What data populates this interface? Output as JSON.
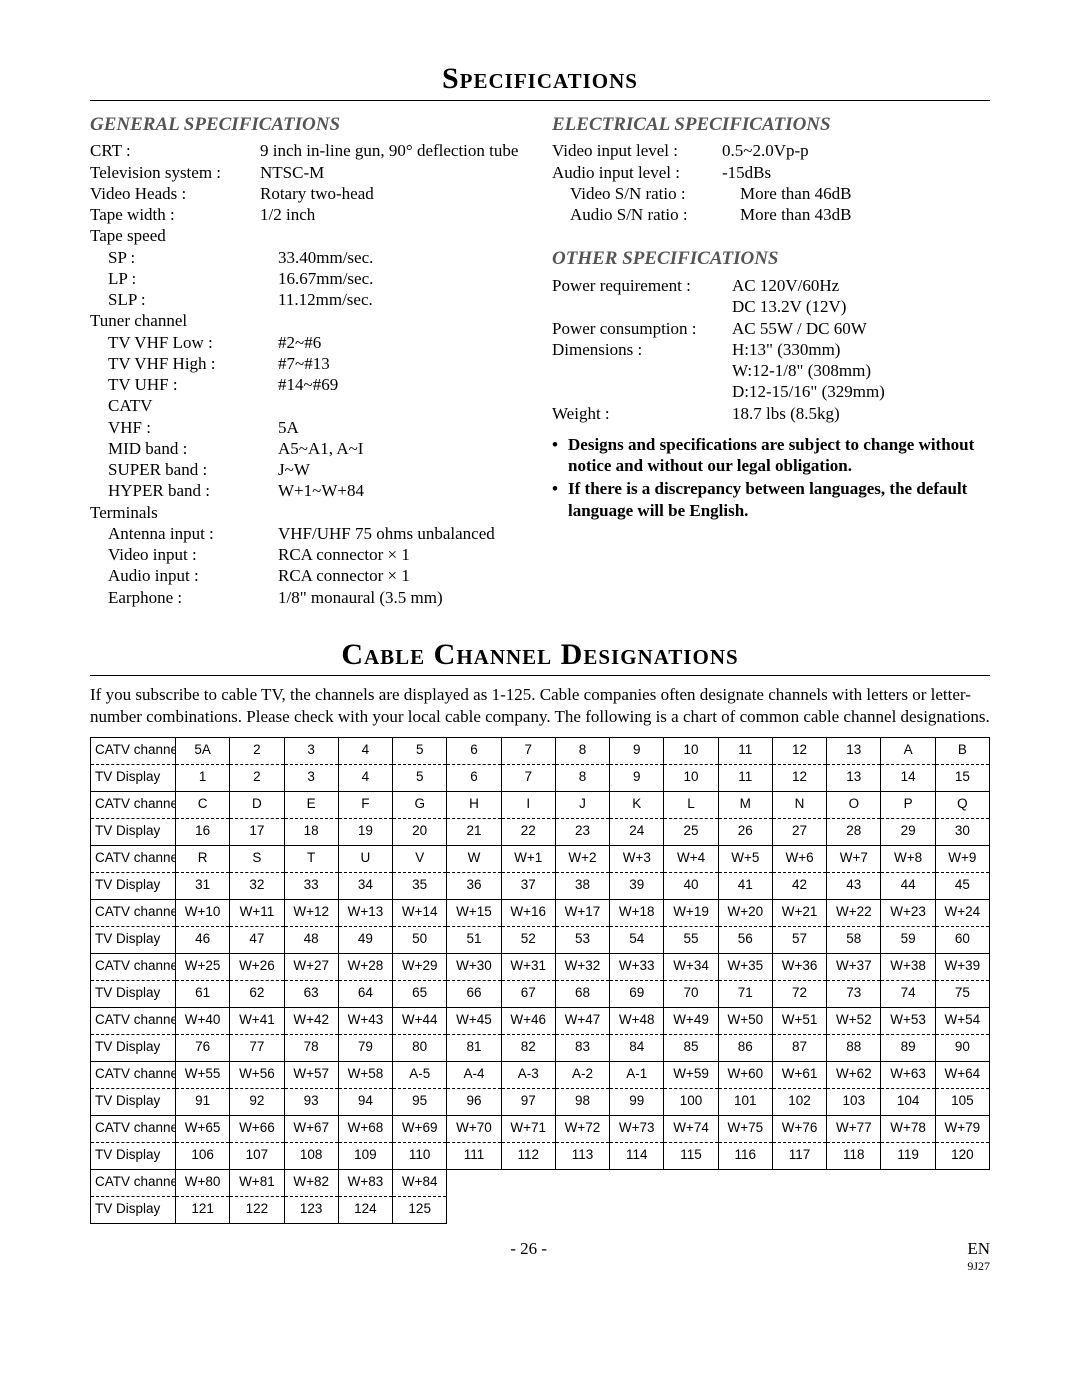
{
  "title1": "Specifications",
  "title2": "Cable Channel Designations",
  "headings": {
    "general": "GENERAL SPECIFICATIONS",
    "electrical": "ELECTRICAL SPECIFICATIONS",
    "other": "OTHER SPECIFICATIONS"
  },
  "general": {
    "crt_l": "CRT :",
    "crt_v": "9 inch in-line gun, 90° deflection tube",
    "tvsys_l": "Television system :",
    "tvsys_v": "NTSC-M",
    "heads_l": "Video Heads :",
    "heads_v": "Rotary two-head",
    "tapew_l": "Tape width :",
    "tapew_v": "1/2 inch",
    "tapespeed_l": "Tape speed",
    "sp_l": "SP :",
    "sp_v": "33.40mm/sec.",
    "lp_l": "LP :",
    "lp_v": "16.67mm/sec.",
    "slp_l": "SLP :",
    "slp_v": "11.12mm/sec.",
    "tuner_l": "Tuner channel",
    "vhflow_l": "TV VHF Low :",
    "vhflow_v": "#2~#6",
    "vhfhigh_l": "TV VHF High :",
    "vhfhigh_v": "#7~#13",
    "uhf_l": "TV UHF :",
    "uhf_v": "#14~#69",
    "catv_l": "CATV",
    "vhf_l": "VHF :",
    "vhf_v": "5A",
    "mid_l": "MID band :",
    "mid_v": "A5~A1, A~I",
    "super_l": "SUPER band :",
    "super_v": "J~W",
    "hyper_l": "HYPER band :",
    "hyper_v": "W+1~W+84",
    "terminals_l": "Terminals",
    "ant_l": "Antenna input :",
    "ant_v": "VHF/UHF 75 ohms unbalanced",
    "vidin_l": "Video input :",
    "vidin_v": "RCA connector × 1",
    "audin_l": "Audio input :",
    "audin_v": "RCA connector × 1",
    "ear_l": "Earphone :",
    "ear_v": "1/8\" monaural (3.5 mm)"
  },
  "electrical": {
    "vidlvl_l": "Video input level :",
    "vidlvl_v": "0.5~2.0Vp-p",
    "audlvl_l": "Audio input level :",
    "audlvl_v": "-15dBs",
    "vsn_l": "Video S/N ratio :",
    "vsn_v": "More than 46dB",
    "asn_l": "Audio S/N ratio :",
    "asn_v": "More than 43dB"
  },
  "other": {
    "pwr_l": "Power requirement :",
    "pwr_v1": "AC 120V/60Hz",
    "pwr_v2": "DC 13.2V (12V)",
    "pcon_l": "Power consumption :",
    "pcon_v": "AC 55W / DC 60W",
    "dim_l": "Dimensions :",
    "dim_v1": "H:13\" (330mm)",
    "dim_v2": "W:12-1/8\" (308mm)",
    "dim_v3": "D:12-15/16\" (329mm)",
    "wt_l": "Weight :",
    "wt_v": "18.7 lbs (8.5kg)"
  },
  "notes": {
    "n1": "Designs and specifications are subject to change without notice and without our legal obligation.",
    "n2": "If there is a discrepancy between languages, the default language will be English."
  },
  "cable_intro": "If you subscribe to cable TV, the channels are displayed as 1-125. Cable companies often designate channels with letters or letter-number combinations. Please check with your local cable company. The following is a chart of common cable channel designations.",
  "labels": {
    "catv": "CATV channel",
    "tvd": "TV Display"
  },
  "cable_rows": [
    {
      "catv": [
        "5A",
        "2",
        "3",
        "4",
        "5",
        "6",
        "7",
        "8",
        "9",
        "10",
        "11",
        "12",
        "13",
        "A",
        "B"
      ],
      "tvd": [
        "1",
        "2",
        "3",
        "4",
        "5",
        "6",
        "7",
        "8",
        "9",
        "10",
        "11",
        "12",
        "13",
        "14",
        "15"
      ]
    },
    {
      "catv": [
        "C",
        "D",
        "E",
        "F",
        "G",
        "H",
        "I",
        "J",
        "K",
        "L",
        "M",
        "N",
        "O",
        "P",
        "Q"
      ],
      "tvd": [
        "16",
        "17",
        "18",
        "19",
        "20",
        "21",
        "22",
        "23",
        "24",
        "25",
        "26",
        "27",
        "28",
        "29",
        "30"
      ]
    },
    {
      "catv": [
        "R",
        "S",
        "T",
        "U",
        "V",
        "W",
        "W+1",
        "W+2",
        "W+3",
        "W+4",
        "W+5",
        "W+6",
        "W+7",
        "W+8",
        "W+9"
      ],
      "tvd": [
        "31",
        "32",
        "33",
        "34",
        "35",
        "36",
        "37",
        "38",
        "39",
        "40",
        "41",
        "42",
        "43",
        "44",
        "45"
      ]
    },
    {
      "catv": [
        "W+10",
        "W+11",
        "W+12",
        "W+13",
        "W+14",
        "W+15",
        "W+16",
        "W+17",
        "W+18",
        "W+19",
        "W+20",
        "W+21",
        "W+22",
        "W+23",
        "W+24"
      ],
      "tvd": [
        "46",
        "47",
        "48",
        "49",
        "50",
        "51",
        "52",
        "53",
        "54",
        "55",
        "56",
        "57",
        "58",
        "59",
        "60"
      ]
    },
    {
      "catv": [
        "W+25",
        "W+26",
        "W+27",
        "W+28",
        "W+29",
        "W+30",
        "W+31",
        "W+32",
        "W+33",
        "W+34",
        "W+35",
        "W+36",
        "W+37",
        "W+38",
        "W+39"
      ],
      "tvd": [
        "61",
        "62",
        "63",
        "64",
        "65",
        "66",
        "67",
        "68",
        "69",
        "70",
        "71",
        "72",
        "73",
        "74",
        "75"
      ]
    },
    {
      "catv": [
        "W+40",
        "W+41",
        "W+42",
        "W+43",
        "W+44",
        "W+45",
        "W+46",
        "W+47",
        "W+48",
        "W+49",
        "W+50",
        "W+51",
        "W+52",
        "W+53",
        "W+54"
      ],
      "tvd": [
        "76",
        "77",
        "78",
        "79",
        "80",
        "81",
        "82",
        "83",
        "84",
        "85",
        "86",
        "87",
        "88",
        "89",
        "90"
      ]
    },
    {
      "catv": [
        "W+55",
        "W+56",
        "W+57",
        "W+58",
        "A-5",
        "A-4",
        "A-3",
        "A-2",
        "A-1",
        "W+59",
        "W+60",
        "W+61",
        "W+62",
        "W+63",
        "W+64"
      ],
      "tvd": [
        "91",
        "92",
        "93",
        "94",
        "95",
        "96",
        "97",
        "98",
        "99",
        "100",
        "101",
        "102",
        "103",
        "104",
        "105"
      ]
    },
    {
      "catv": [
        "W+65",
        "W+66",
        "W+67",
        "W+68",
        "W+69",
        "W+70",
        "W+71",
        "W+72",
        "W+73",
        "W+74",
        "W+75",
        "W+76",
        "W+77",
        "W+78",
        "W+79"
      ],
      "tvd": [
        "106",
        "107",
        "108",
        "109",
        "110",
        "111",
        "112",
        "113",
        "114",
        "115",
        "116",
        "117",
        "118",
        "119",
        "120"
      ]
    },
    {
      "catv": [
        "W+80",
        "W+81",
        "W+82",
        "W+83",
        "W+84"
      ],
      "tvd": [
        "121",
        "122",
        "123",
        "124",
        "125"
      ]
    }
  ],
  "footer": {
    "page": "- 26 -",
    "lang": "EN",
    "code": "9J27"
  },
  "style": {
    "body_font": "Times New Roman",
    "table_font": "Helvetica",
    "heading_color": "#555555",
    "border_color": "#000000",
    "background": "#ffffff"
  }
}
